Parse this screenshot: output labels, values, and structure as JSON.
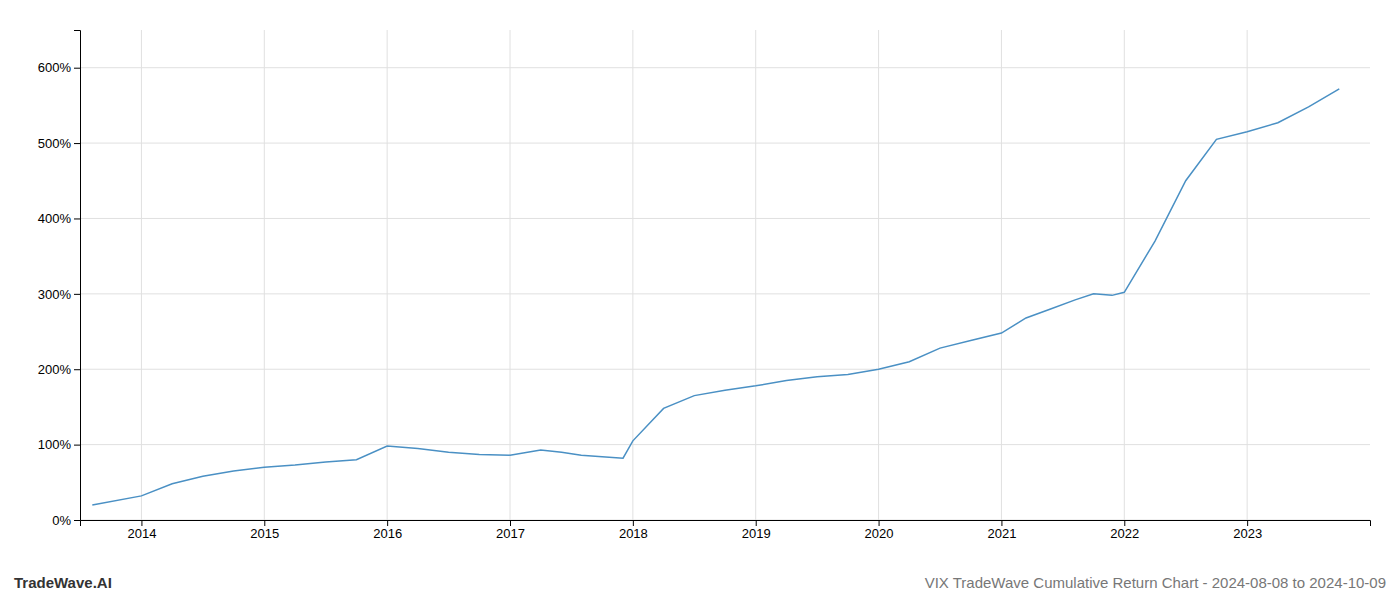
{
  "chart_data": {
    "type": "line",
    "title": "VIX TradeWave Cumulative Return Chart - 2024-08-08 to 2024-10-09",
    "annotations": [
      "TradeWave.AI"
    ],
    "x": [
      2013.6,
      2014.0,
      2014.25,
      2014.5,
      2014.75,
      2015.0,
      2015.25,
      2015.5,
      2015.75,
      2016.0,
      2016.25,
      2016.5,
      2016.75,
      2017.0,
      2017.25,
      2017.42,
      2017.58,
      2017.75,
      2017.92,
      2018.0,
      2018.25,
      2018.5,
      2018.75,
      2019.0,
      2019.25,
      2019.5,
      2019.75,
      2020.0,
      2020.25,
      2020.5,
      2020.75,
      2021.0,
      2021.2,
      2021.4,
      2021.6,
      2021.75,
      2021.9,
      2022.0,
      2022.25,
      2022.5,
      2022.75,
      2023.0,
      2023.25,
      2023.5,
      2023.75
    ],
    "values": [
      20,
      32,
      48,
      58,
      65,
      70,
      73,
      77,
      80,
      98,
      95,
      90,
      87,
      86,
      93,
      90,
      86,
      84,
      82,
      105,
      148,
      165,
      172,
      178,
      185,
      190,
      193,
      200,
      210,
      228,
      238,
      248,
      268,
      280,
      292,
      300,
      298,
      302,
      370,
      450,
      505,
      515,
      527,
      548,
      572
    ],
    "color": "#4a90c4",
    "xlim": [
      2013.5,
      2024.0
    ],
    "xticks": [
      2014,
      2015,
      2016,
      2017,
      2018,
      2019,
      2020,
      2021,
      2022,
      2023
    ],
    "ylim": [
      0,
      650
    ],
    "yticks": [
      {
        "value": 0,
        "label": "0%"
      },
      {
        "value": 100,
        "label": "100%"
      },
      {
        "value": 200,
        "label": "200%"
      },
      {
        "value": 300,
        "label": "300%"
      },
      {
        "value": 400,
        "label": "400%"
      },
      {
        "value": 500,
        "label": "500%"
      },
      {
        "value": 600,
        "label": "600%"
      }
    ],
    "grid": true
  }
}
